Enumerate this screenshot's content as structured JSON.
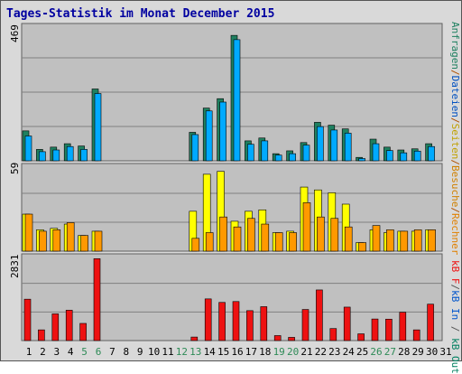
{
  "title": "Tages-Statistik im Monat December 2015",
  "colors": {
    "background": "#d9d9d9",
    "plot_bg": "#c0c0c0",
    "gridline": "#808080",
    "anfragen": "#1f8060",
    "dateien": "#00aaff",
    "seiten": "#ffff00",
    "rechner": "#ff9900",
    "kb_f": "#ee1111",
    "kb_in": "#0055cc",
    "kb_out": "#008060",
    "sunday_label": "#2e8b57",
    "title": "#0000a0"
  },
  "legend_top": [
    "Anfragen",
    "Dateien",
    "Seiten",
    "Besuche",
    "Rechner"
  ],
  "legend_bottom": [
    "kB F",
    "kB In",
    "kB Out"
  ],
  "legend_separators": [
    "/",
    "/",
    "/",
    "/",
    "/"
  ],
  "chart_data": [
    {
      "type": "bar",
      "name": "hits-files",
      "ymax_label": "469",
      "ylim": [
        0,
        469
      ],
      "categories": [
        "1",
        "2",
        "3",
        "4",
        "5",
        "6",
        "7",
        "8",
        "9",
        "10",
        "11",
        "12",
        "13",
        "14",
        "15",
        "16",
        "17",
        "18",
        "19",
        "20",
        "21",
        "22",
        "23",
        "24",
        "25",
        "26",
        "27",
        "28",
        "29",
        "30",
        "31"
      ],
      "series": [
        {
          "name": "Anfragen",
          "values": [
            105,
            40,
            48,
            60,
            52,
            252,
            0,
            0,
            0,
            0,
            0,
            0,
            100,
            185,
            218,
            440,
            70,
            80,
            25,
            35,
            64,
            135,
            125,
            112,
            12,
            76,
            48,
            38,
            42,
            60,
            0
          ]
        },
        {
          "name": "Dateien",
          "values": [
            87,
            32,
            38,
            50,
            40,
            236,
            0,
            0,
            0,
            0,
            0,
            0,
            92,
            175,
            206,
            425,
            58,
            70,
            20,
            25,
            55,
            120,
            108,
            97,
            8,
            60,
            36,
            28,
            34,
            50,
            0
          ]
        }
      ]
    },
    {
      "type": "bar",
      "name": "pages-visits-sites",
      "ymax_label": "59",
      "ylim": [
        0,
        59
      ],
      "categories": [
        "1",
        "2",
        "3",
        "4",
        "5",
        "6",
        "7",
        "8",
        "9",
        "10",
        "11",
        "12",
        "13",
        "14",
        "15",
        "16",
        "17",
        "18",
        "19",
        "20",
        "21",
        "22",
        "23",
        "24",
        "25",
        "26",
        "27",
        "28",
        "29",
        "30",
        "31"
      ],
      "series": [
        {
          "name": "Seiten",
          "values": [
            26,
            15,
            16,
            19,
            11,
            14,
            0,
            0,
            0,
            0,
            0,
            0,
            28,
            54,
            56,
            21,
            28,
            29,
            13,
            14,
            45,
            43,
            41,
            33,
            6,
            15,
            13,
            14,
            14,
            15,
            0
          ]
        },
        {
          "name": "Besuche",
          "values": [
            0,
            0,
            0,
            0,
            0,
            0,
            0,
            0,
            0,
            0,
            0,
            0,
            0,
            0,
            0,
            0,
            0,
            0,
            0,
            0,
            0,
            0,
            0,
            0,
            0,
            0,
            0,
            0,
            0,
            0,
            0
          ]
        },
        {
          "name": "Rechner",
          "values": [
            26,
            14,
            15,
            20,
            11,
            14,
            0,
            0,
            0,
            0,
            0,
            0,
            9,
            13,
            24,
            17,
            23,
            19,
            13,
            13,
            34,
            24,
            23,
            17,
            6,
            18,
            15,
            14,
            15,
            15,
            0
          ]
        }
      ]
    },
    {
      "type": "bar",
      "name": "kilobytes",
      "ymax_label": "2831",
      "ylim": [
        0,
        2831
      ],
      "categories": [
        "1",
        "2",
        "3",
        "4",
        "5",
        "6",
        "7",
        "8",
        "9",
        "10",
        "11",
        "12",
        "13",
        "14",
        "15",
        "16",
        "17",
        "18",
        "19",
        "20",
        "21",
        "22",
        "23",
        "24",
        "25",
        "26",
        "27",
        "28",
        "29",
        "30",
        "31"
      ],
      "series": [
        {
          "name": "kB F",
          "values": [
            1410,
            365,
            910,
            1035,
            585,
            2790,
            0,
            0,
            0,
            0,
            0,
            0,
            120,
            1420,
            1300,
            1330,
            1020,
            1155,
            170,
            110,
            1060,
            1725,
            410,
            1140,
            230,
            735,
            730,
            965,
            365,
            1240,
            0
          ]
        }
      ]
    }
  ]
}
